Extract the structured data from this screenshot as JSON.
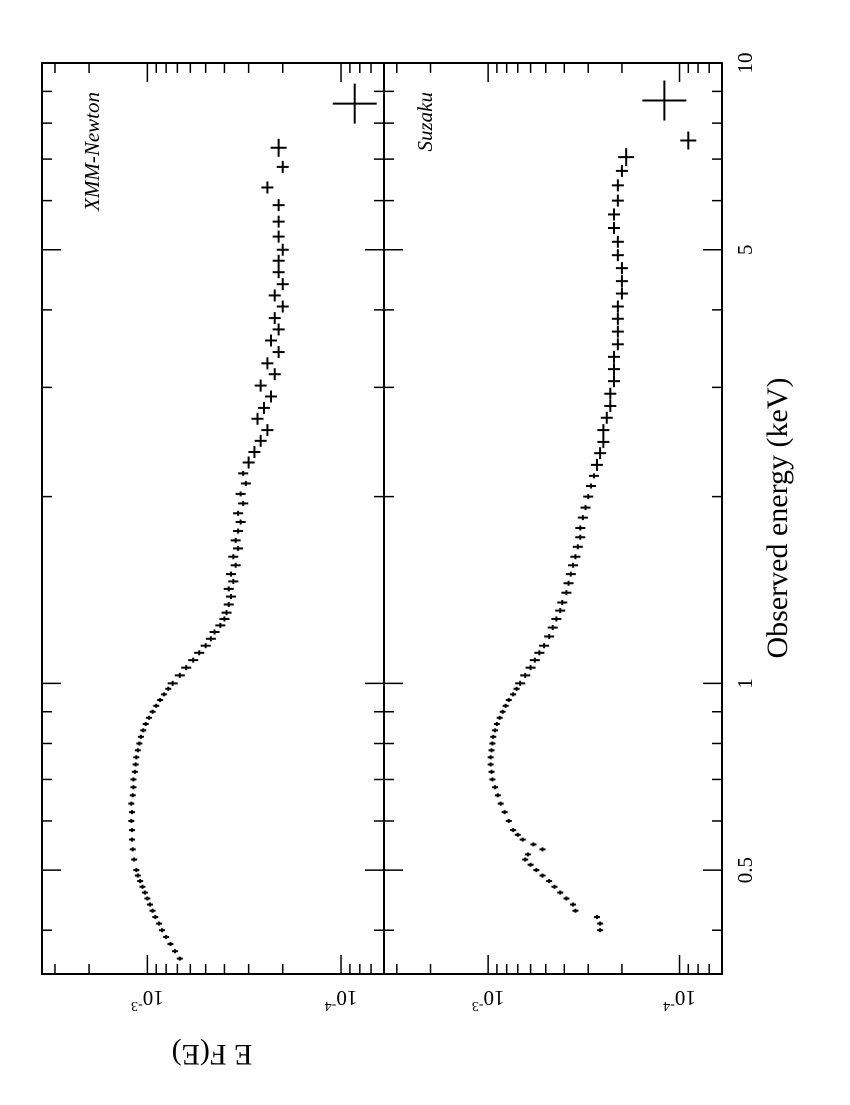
{
  "chart_data": {
    "type": "scatter",
    "orientation_note": "figure is rotated 90 degrees clockwise; energy axis runs top to bottom",
    "xlabel": "Observed energy (keV)",
    "ylabel": "E F(E)",
    "x_scale": "log",
    "y_scale": "log",
    "xlim": [
      0.34,
      10
    ],
    "ylim": [
      6e-05,
      0.0035
    ],
    "x_tick_labels": [
      "0.5",
      "1",
      "5",
      "10"
    ],
    "x_tick_values": [
      0.5,
      1,
      5,
      10
    ],
    "y_tick_labels": [
      {
        "base": "10",
        "exp": "-3",
        "value": 0.001
      },
      {
        "base": "10",
        "exp": "-4",
        "value": 0.0001
      }
    ],
    "panels": [
      {
        "name": "XMM-Newton",
        "points": [
          {
            "x": 0.36,
            "y": 0.00068
          },
          {
            "x": 0.37,
            "y": 0.00072
          },
          {
            "x": 0.38,
            "y": 0.00076
          },
          {
            "x": 0.39,
            "y": 0.0008
          },
          {
            "x": 0.4,
            "y": 0.00084
          },
          {
            "x": 0.41,
            "y": 0.00087
          },
          {
            "x": 0.42,
            "y": 0.00091
          },
          {
            "x": 0.43,
            "y": 0.00094
          },
          {
            "x": 0.44,
            "y": 0.00097
          },
          {
            "x": 0.45,
            "y": 0.001
          },
          {
            "x": 0.46,
            "y": 0.00103
          },
          {
            "x": 0.47,
            "y": 0.00106
          },
          {
            "x": 0.48,
            "y": 0.00109
          },
          {
            "x": 0.49,
            "y": 0.00112
          },
          {
            "x": 0.5,
            "y": 0.00114
          },
          {
            "x": 0.52,
            "y": 0.00117
          },
          {
            "x": 0.54,
            "y": 0.00119
          },
          {
            "x": 0.56,
            "y": 0.0012
          },
          {
            "x": 0.58,
            "y": 0.0012
          },
          {
            "x": 0.6,
            "y": 0.00121
          },
          {
            "x": 0.62,
            "y": 0.0012
          },
          {
            "x": 0.64,
            "y": 0.00121
          },
          {
            "x": 0.66,
            "y": 0.00119
          },
          {
            "x": 0.68,
            "y": 0.00118
          },
          {
            "x": 0.7,
            "y": 0.00118
          },
          {
            "x": 0.72,
            "y": 0.00116
          },
          {
            "x": 0.74,
            "y": 0.00115
          },
          {
            "x": 0.76,
            "y": 0.00114
          },
          {
            "x": 0.78,
            "y": 0.00112
          },
          {
            "x": 0.8,
            "y": 0.0011
          },
          {
            "x": 0.82,
            "y": 0.00108
          },
          {
            "x": 0.84,
            "y": 0.00105
          },
          {
            "x": 0.86,
            "y": 0.00102
          },
          {
            "x": 0.88,
            "y": 0.00098
          },
          {
            "x": 0.9,
            "y": 0.00094
          },
          {
            "x": 0.92,
            "y": 0.0009
          },
          {
            "x": 0.94,
            "y": 0.00086
          },
          {
            "x": 0.96,
            "y": 0.00082
          },
          {
            "x": 0.98,
            "y": 0.00078
          },
          {
            "x": 1.0,
            "y": 0.00074
          },
          {
            "x": 1.03,
            "y": 0.00068
          },
          {
            "x": 1.06,
            "y": 0.00063
          },
          {
            "x": 1.09,
            "y": 0.00058
          },
          {
            "x": 1.12,
            "y": 0.00054
          },
          {
            "x": 1.15,
            "y": 0.0005
          },
          {
            "x": 1.18,
            "y": 0.00047
          },
          {
            "x": 1.21,
            "y": 0.00045
          },
          {
            "x": 1.24,
            "y": 0.00042
          },
          {
            "x": 1.27,
            "y": 0.0004
          },
          {
            "x": 1.3,
            "y": 0.00039
          },
          {
            "x": 1.34,
            "y": 0.00038
          },
          {
            "x": 1.38,
            "y": 0.00037
          },
          {
            "x": 1.42,
            "y": 0.00038
          },
          {
            "x": 1.46,
            "y": 0.00036
          },
          {
            "x": 1.5,
            "y": 0.00037
          },
          {
            "x": 1.55,
            "y": 0.00035
          },
          {
            "x": 1.6,
            "y": 0.00036
          },
          {
            "x": 1.65,
            "y": 0.00034
          },
          {
            "x": 1.7,
            "y": 0.00035
          },
          {
            "x": 1.76,
            "y": 0.00034
          },
          {
            "x": 1.82,
            "y": 0.00033
          },
          {
            "x": 1.88,
            "y": 0.00034
          },
          {
            "x": 1.95,
            "y": 0.00032
          },
          {
            "x": 2.02,
            "y": 0.00033
          },
          {
            "x": 2.1,
            "y": 0.00031
          },
          {
            "x": 2.18,
            "y": 0.00032
          },
          {
            "x": 2.27,
            "y": 0.0003
          },
          {
            "x": 2.36,
            "y": 0.00028
          },
          {
            "x": 2.46,
            "y": 0.00026
          },
          {
            "x": 2.56,
            "y": 0.00024
          },
          {
            "x": 2.67,
            "y": 0.00027
          },
          {
            "x": 2.78,
            "y": 0.00025
          },
          {
            "x": 2.9,
            "y": 0.00023
          },
          {
            "x": 3.02,
            "y": 0.00026
          },
          {
            "x": 3.15,
            "y": 0.00022
          },
          {
            "x": 3.28,
            "y": 0.00024
          },
          {
            "x": 3.42,
            "y": 0.00021
          },
          {
            "x": 3.57,
            "y": 0.00023
          },
          {
            "x": 3.72,
            "y": 0.00021
          },
          {
            "x": 3.88,
            "y": 0.00022
          },
          {
            "x": 4.05,
            "y": 0.0002
          },
          {
            "x": 4.22,
            "y": 0.00022
          },
          {
            "x": 4.4,
            "y": 0.0002
          },
          {
            "x": 4.6,
            "y": 0.00021
          },
          {
            "x": 4.8,
            "y": 0.00021
          },
          {
            "x": 5.0,
            "y": 0.0002
          },
          {
            "x": 5.25,
            "y": 0.00021
          },
          {
            "x": 5.55,
            "y": 0.00021
          },
          {
            "x": 5.9,
            "y": 0.00021
          },
          {
            "x": 6.3,
            "y": 0.00024
          },
          {
            "x": 6.8,
            "y": 0.0002
          },
          {
            "x": 7.3,
            "y": 0.00021
          },
          {
            "x": 8.6,
            "y": 8.5e-05
          }
        ]
      },
      {
        "name": "Suzaku",
        "points": [
          {
            "x": 0.4,
            "y": 0.00026
          },
          {
            "x": 0.41,
            "y": 0.00026
          },
          {
            "x": 0.42,
            "y": 0.00027
          },
          {
            "x": 0.43,
            "y": 0.00035
          },
          {
            "x": 0.44,
            "y": 0.00036
          },
          {
            "x": 0.45,
            "y": 0.00039
          },
          {
            "x": 0.46,
            "y": 0.00042
          },
          {
            "x": 0.47,
            "y": 0.00045
          },
          {
            "x": 0.48,
            "y": 0.00048
          },
          {
            "x": 0.49,
            "y": 0.00052
          },
          {
            "x": 0.5,
            "y": 0.00056
          },
          {
            "x": 0.51,
            "y": 0.0006
          },
          {
            "x": 0.52,
            "y": 0.00064
          },
          {
            "x": 0.53,
            "y": 0.00062
          },
          {
            "x": 0.54,
            "y": 0.00052
          },
          {
            "x": 0.55,
            "y": 0.00058
          },
          {
            "x": 0.56,
            "y": 0.00066
          },
          {
            "x": 0.57,
            "y": 0.0007
          },
          {
            "x": 0.58,
            "y": 0.00074
          },
          {
            "x": 0.6,
            "y": 0.00078
          },
          {
            "x": 0.62,
            "y": 0.00082
          },
          {
            "x": 0.64,
            "y": 0.00086
          },
          {
            "x": 0.66,
            "y": 0.00089
          },
          {
            "x": 0.68,
            "y": 0.00092
          },
          {
            "x": 0.7,
            "y": 0.00095
          },
          {
            "x": 0.72,
            "y": 0.00096
          },
          {
            "x": 0.74,
            "y": 0.00097
          },
          {
            "x": 0.76,
            "y": 0.00097
          },
          {
            "x": 0.78,
            "y": 0.00096
          },
          {
            "x": 0.8,
            "y": 0.00095
          },
          {
            "x": 0.82,
            "y": 0.00094
          },
          {
            "x": 0.84,
            "y": 0.00092
          },
          {
            "x": 0.86,
            "y": 0.0009
          },
          {
            "x": 0.88,
            "y": 0.00087
          },
          {
            "x": 0.9,
            "y": 0.00084
          },
          {
            "x": 0.92,
            "y": 0.00081
          },
          {
            "x": 0.94,
            "y": 0.00078
          },
          {
            "x": 0.96,
            "y": 0.00074
          },
          {
            "x": 0.98,
            "y": 0.00071
          },
          {
            "x": 1.0,
            "y": 0.00068
          },
          {
            "x": 1.03,
            "y": 0.00064
          },
          {
            "x": 1.06,
            "y": 0.0006
          },
          {
            "x": 1.09,
            "y": 0.00057
          },
          {
            "x": 1.12,
            "y": 0.00054
          },
          {
            "x": 1.15,
            "y": 0.00051
          },
          {
            "x": 1.19,
            "y": 0.00048
          },
          {
            "x": 1.23,
            "y": 0.00046
          },
          {
            "x": 1.27,
            "y": 0.00044
          },
          {
            "x": 1.31,
            "y": 0.00042
          },
          {
            "x": 1.35,
            "y": 0.00041
          },
          {
            "x": 1.4,
            "y": 0.00039
          },
          {
            "x": 1.45,
            "y": 0.00038
          },
          {
            "x": 1.5,
            "y": 0.00037
          },
          {
            "x": 1.55,
            "y": 0.00036
          },
          {
            "x": 1.6,
            "y": 0.00035
          },
          {
            "x": 1.66,
            "y": 0.00034
          },
          {
            "x": 1.72,
            "y": 0.00033
          },
          {
            "x": 1.78,
            "y": 0.00033
          },
          {
            "x": 1.85,
            "y": 0.00032
          },
          {
            "x": 1.92,
            "y": 0.00031
          },
          {
            "x": 2.0,
            "y": 0.0003
          },
          {
            "x": 2.08,
            "y": 0.00029
          },
          {
            "x": 2.16,
            "y": 0.00028
          },
          {
            "x": 2.25,
            "y": 0.00027
          },
          {
            "x": 2.35,
            "y": 0.00026
          },
          {
            "x": 2.45,
            "y": 0.00025
          },
          {
            "x": 2.56,
            "y": 0.00025
          },
          {
            "x": 2.68,
            "y": 0.00024
          },
          {
            "x": 2.8,
            "y": 0.00023
          },
          {
            "x": 2.93,
            "y": 0.00023
          },
          {
            "x": 3.07,
            "y": 0.00022
          },
          {
            "x": 3.21,
            "y": 0.00022
          },
          {
            "x": 3.36,
            "y": 0.00022
          },
          {
            "x": 3.52,
            "y": 0.00021
          },
          {
            "x": 3.69,
            "y": 0.00021
          },
          {
            "x": 3.87,
            "y": 0.00021
          },
          {
            "x": 4.05,
            "y": 0.00021
          },
          {
            "x": 4.25,
            "y": 0.0002
          },
          {
            "x": 4.45,
            "y": 0.0002
          },
          {
            "x": 4.67,
            "y": 0.0002
          },
          {
            "x": 4.9,
            "y": 0.00021
          },
          {
            "x": 5.15,
            "y": 0.00021
          },
          {
            "x": 5.42,
            "y": 0.00022
          },
          {
            "x": 5.7,
            "y": 0.00022
          },
          {
            "x": 6.0,
            "y": 0.00021
          },
          {
            "x": 6.35,
            "y": 0.00021
          },
          {
            "x": 6.7,
            "y": 0.0002
          },
          {
            "x": 7.05,
            "y": 0.00019
          },
          {
            "x": 7.5,
            "y": 9e-05
          },
          {
            "x": 8.7,
            "y": 0.00012
          }
        ]
      }
    ]
  }
}
